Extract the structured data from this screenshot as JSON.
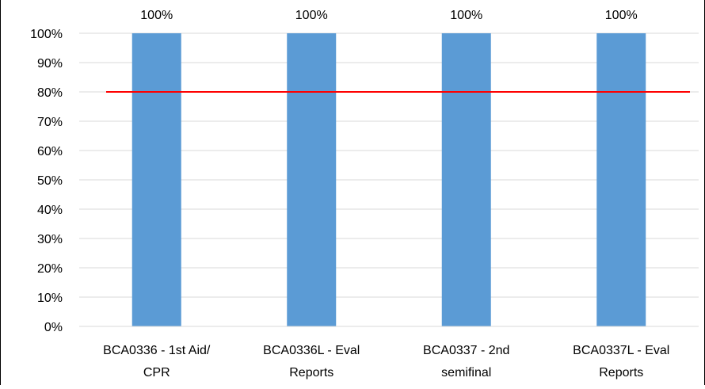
{
  "chart_data": {
    "type": "bar",
    "title": "",
    "xlabel": "",
    "ylabel": "",
    "categories": [
      [
        "BCA0336 - 1st Aid/",
        "CPR"
      ],
      [
        "BCA0336L - Eval",
        "Reports"
      ],
      [
        "BCA0337 - 2nd",
        "semifinal"
      ],
      [
        "BCA0337L - Eval",
        "Reports"
      ]
    ],
    "values": [
      100,
      100,
      100,
      100
    ],
    "data_labels": [
      "100%",
      "100%",
      "100%",
      "100%"
    ],
    "ylim": [
      0,
      100
    ],
    "y_ticks": [
      0,
      10,
      20,
      30,
      40,
      50,
      60,
      70,
      80,
      90,
      100
    ],
    "y_tick_labels": [
      "0%",
      "10%",
      "20%",
      "30%",
      "40%",
      "50%",
      "60%",
      "70%",
      "80%",
      "90%",
      "100%"
    ],
    "grid": true,
    "target_line": {
      "value": 80,
      "color": "#ff0000"
    },
    "bar_color": "#5b9bd5",
    "grid_color": "#d9d9d9"
  }
}
